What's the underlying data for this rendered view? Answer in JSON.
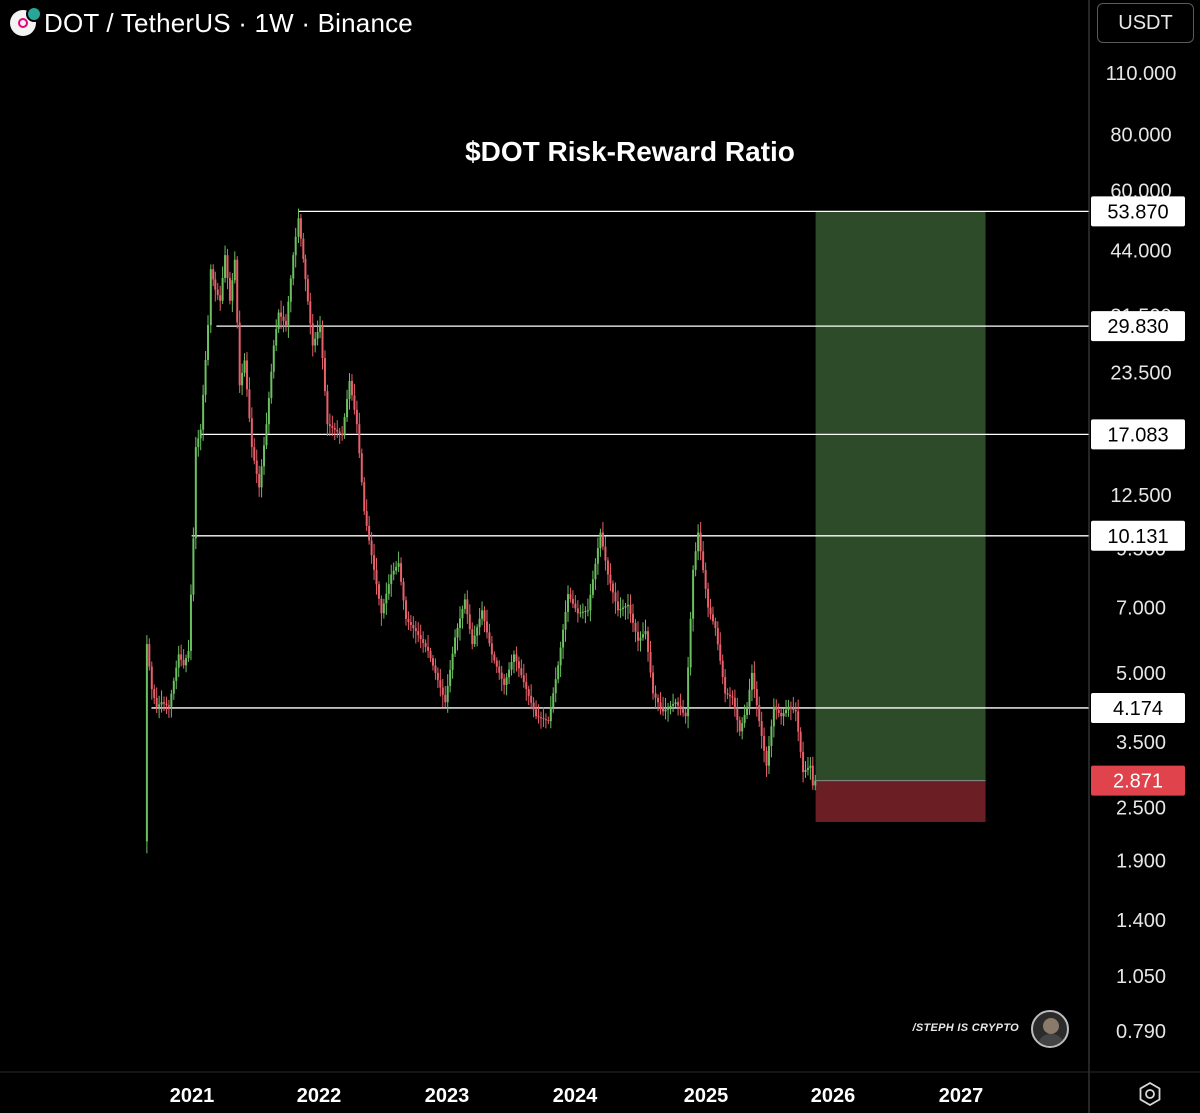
{
  "header": {
    "title": "DOT / TetherUS · 1W · Binance"
  },
  "currency_button": {
    "label": "USDT"
  },
  "settings_button": {
    "icon": "gear-icon"
  },
  "watermark": {
    "text": "/STEPH IS CRYPTO"
  },
  "colors": {
    "background": "#000000",
    "up_candle": "#6cc061",
    "down_candle": "#e8606a",
    "level_line": "#ffffff",
    "target_zone": "#2e4b29",
    "stop_zone": "#6b1f24",
    "current_price_tag": "#e0434b"
  },
  "chart_data": {
    "type": "line",
    "title": "$DOT Risk-Reward Ratio",
    "scale": "log",
    "ylim": [
      0.66,
      125
    ],
    "xlim": [
      "2020-03-01",
      "2027-12-31"
    ],
    "x_ticks": [
      "2021",
      "2022",
      "2023",
      "2024",
      "2025",
      "2026",
      "2027"
    ],
    "y_ticks": [
      110.0,
      80.0,
      60.0,
      44.0,
      31.5,
      23.5,
      17.083,
      12.5,
      9.5,
      7.0,
      5.0,
      3.5,
      2.5,
      1.9,
      1.4,
      1.05,
      0.79
    ],
    "y_tick_labels": [
      "110.000",
      "80.000",
      "60.000",
      "44.000",
      "31.500",
      "23.500",
      "17.083",
      "12.500",
      "9.500",
      "7.000",
      "5.000",
      "3.500",
      "2.500",
      "1.900",
      "1.400",
      "1.050",
      "0.790"
    ],
    "levels": [
      {
        "value": 53.87,
        "label": "53.870",
        "from": "2021-11-03"
      },
      {
        "value": 29.83,
        "label": "29.830",
        "from": "2021-03-12"
      },
      {
        "value": 17.083,
        "label": "17.083",
        "from": "2021-01-28"
      },
      {
        "value": 10.131,
        "label": "10.131",
        "from": "2020-12-31"
      },
      {
        "value": 4.174,
        "label": "4.174",
        "from": "2020-09-07"
      }
    ],
    "current_price": {
      "value": 2.871,
      "label": "2.871"
    },
    "position": {
      "entry": 2.871,
      "target": 53.87,
      "stop": 2.32,
      "start": "2025-11-12",
      "end": "2027-03-12"
    },
    "series": [
      {
        "points": [
          [
            "2020-08-18",
            2.1
          ],
          [
            "2020-08-25",
            5.8
          ],
          [
            "2020-09-08",
            4.6
          ],
          [
            "2020-09-22",
            4.2
          ],
          [
            "2020-10-06",
            4.3
          ],
          [
            "2020-10-27",
            4.2
          ],
          [
            "2020-11-10",
            4.8
          ],
          [
            "2020-11-24",
            5.5
          ],
          [
            "2020-12-08",
            5.2
          ],
          [
            "2020-12-22",
            5.6
          ],
          [
            "2021-01-05",
            10.0
          ],
          [
            "2021-01-12",
            16.0
          ],
          [
            "2021-01-26",
            17.5
          ],
          [
            "2021-02-16",
            30.0
          ],
          [
            "2021-02-24",
            40.0
          ],
          [
            "2021-03-09",
            36.0
          ],
          [
            "2021-03-23",
            34.0
          ],
          [
            "2021-04-06",
            43.0
          ],
          [
            "2021-04-20",
            34.0
          ],
          [
            "2021-05-04",
            42.0
          ],
          [
            "2021-05-18",
            22.0
          ],
          [
            "2021-06-01",
            25.0
          ],
          [
            "2021-06-22",
            16.0
          ],
          [
            "2021-07-13",
            13.0
          ],
          [
            "2021-08-03",
            18.0
          ],
          [
            "2021-08-24",
            27.0
          ],
          [
            "2021-09-07",
            32.0
          ],
          [
            "2021-09-28",
            30.0
          ],
          [
            "2021-10-19",
            43.0
          ],
          [
            "2021-11-03",
            52.0
          ],
          [
            "2021-11-23",
            38.0
          ],
          [
            "2021-12-14",
            27.0
          ],
          [
            "2022-01-04",
            30.0
          ],
          [
            "2022-01-25",
            18.0
          ],
          [
            "2022-02-15",
            17.5
          ],
          [
            "2022-03-08",
            17.0
          ],
          [
            "2022-03-29",
            22.5
          ],
          [
            "2022-04-19",
            18.0
          ],
          [
            "2022-05-10",
            11.5
          ],
          [
            "2022-06-07",
            8.5
          ],
          [
            "2022-06-28",
            6.8
          ],
          [
            "2022-07-26",
            8.3
          ],
          [
            "2022-08-16",
            8.8
          ],
          [
            "2022-09-06",
            6.6
          ],
          [
            "2022-10-04",
            6.2
          ],
          [
            "2022-11-08",
            5.6
          ],
          [
            "2022-11-29",
            5.0
          ],
          [
            "2022-12-27",
            4.3
          ],
          [
            "2023-01-24",
            6.0
          ],
          [
            "2023-02-21",
            7.3
          ],
          [
            "2023-03-14",
            5.8
          ],
          [
            "2023-04-11",
            6.9
          ],
          [
            "2023-05-09",
            5.5
          ],
          [
            "2023-06-13",
            4.7
          ],
          [
            "2023-07-11",
            5.5
          ],
          [
            "2023-08-15",
            4.6
          ],
          [
            "2023-09-12",
            4.0
          ],
          [
            "2023-10-17",
            3.9
          ],
          [
            "2023-11-14",
            5.2
          ],
          [
            "2023-12-12",
            7.5
          ],
          [
            "2024-01-09",
            6.8
          ],
          [
            "2024-02-06",
            6.9
          ],
          [
            "2024-03-12",
            10.3
          ],
          [
            "2024-04-02",
            8.3
          ],
          [
            "2024-04-30",
            6.9
          ],
          [
            "2024-05-28",
            7.1
          ],
          [
            "2024-06-25",
            5.9
          ],
          [
            "2024-07-16",
            6.2
          ],
          [
            "2024-08-06",
            4.5
          ],
          [
            "2024-09-03",
            4.1
          ],
          [
            "2024-10-08",
            4.3
          ],
          [
            "2024-11-05",
            4.0
          ],
          [
            "2024-11-26",
            8.5
          ],
          [
            "2024-12-10",
            10.3
          ],
          [
            "2025-01-07",
            7.0
          ],
          [
            "2025-01-28",
            6.3
          ],
          [
            "2025-02-25",
            4.5
          ],
          [
            "2025-03-18",
            4.4
          ],
          [
            "2025-04-08",
            3.7
          ],
          [
            "2025-04-29",
            4.2
          ],
          [
            "2025-05-13",
            5.0
          ],
          [
            "2025-06-03",
            3.9
          ],
          [
            "2025-06-24",
            3.1
          ],
          [
            "2025-07-15",
            4.2
          ],
          [
            "2025-08-05",
            4.0
          ],
          [
            "2025-08-26",
            4.2
          ],
          [
            "2025-09-16",
            4.1
          ],
          [
            "2025-10-07",
            3.0
          ],
          [
            "2025-10-28",
            3.1
          ],
          [
            "2025-11-04",
            2.8
          ],
          [
            "2025-11-11",
            2.871
          ]
        ]
      }
    ]
  }
}
